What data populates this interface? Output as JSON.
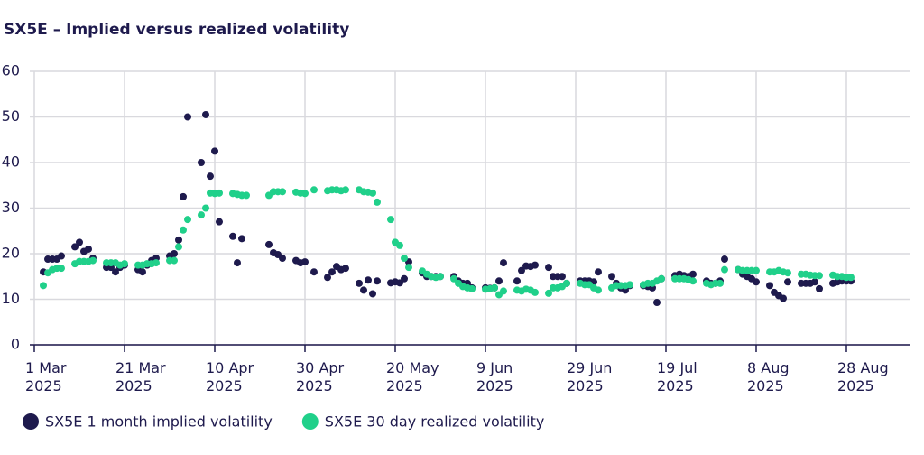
{
  "chart_data": {
    "type": "scatter",
    "title": "SX5E – Implied versus realized volatility",
    "x": [
      "2025-03-03",
      "2025-03-04",
      "2025-03-05",
      "2025-03-06",
      "2025-03-07",
      "2025-03-10",
      "2025-03-11",
      "2025-03-12",
      "2025-03-13",
      "2025-03-14",
      "2025-03-17",
      "2025-03-18",
      "2025-03-19",
      "2025-03-20",
      "2025-03-21",
      "2025-03-24",
      "2025-03-25",
      "2025-03-26",
      "2025-03-27",
      "2025-03-28",
      "2025-03-31",
      "2025-04-01",
      "2025-04-02",
      "2025-04-03",
      "2025-04-04",
      "2025-04-07",
      "2025-04-08",
      "2025-04-09",
      "2025-04-10",
      "2025-04-11",
      "2025-04-14",
      "2025-04-15",
      "2025-04-16",
      "2025-04-17",
      "2025-04-22",
      "2025-04-23",
      "2025-04-24",
      "2025-04-25",
      "2025-04-28",
      "2025-04-29",
      "2025-04-30",
      "2025-05-02",
      "2025-05-05",
      "2025-05-06",
      "2025-05-07",
      "2025-05-08",
      "2025-05-09",
      "2025-05-12",
      "2025-05-13",
      "2025-05-14",
      "2025-05-15",
      "2025-05-16",
      "2025-05-19",
      "2025-05-20",
      "2025-05-21",
      "2025-05-22",
      "2025-05-23",
      "2025-05-26",
      "2025-05-27",
      "2025-05-28",
      "2025-05-29",
      "2025-05-30",
      "2025-06-02",
      "2025-06-03",
      "2025-06-04",
      "2025-06-05",
      "2025-06-06",
      "2025-06-09",
      "2025-06-10",
      "2025-06-11",
      "2025-06-12",
      "2025-06-13",
      "2025-06-16",
      "2025-06-17",
      "2025-06-18",
      "2025-06-19",
      "2025-06-20",
      "2025-06-23",
      "2025-06-24",
      "2025-06-25",
      "2025-06-26",
      "2025-06-27",
      "2025-06-30",
      "2025-07-01",
      "2025-07-02",
      "2025-07-03",
      "2025-07-04",
      "2025-07-07",
      "2025-07-08",
      "2025-07-09",
      "2025-07-10",
      "2025-07-11",
      "2025-07-14",
      "2025-07-15",
      "2025-07-16",
      "2025-07-17",
      "2025-07-18",
      "2025-07-21",
      "2025-07-22",
      "2025-07-23",
      "2025-07-24",
      "2025-07-25",
      "2025-07-28",
      "2025-07-29",
      "2025-07-30",
      "2025-07-31",
      "2025-08-01",
      "2025-08-04",
      "2025-08-05",
      "2025-08-06",
      "2025-08-07",
      "2025-08-08",
      "2025-08-11",
      "2025-08-12",
      "2025-08-13",
      "2025-08-14",
      "2025-08-15",
      "2025-08-18",
      "2025-08-19",
      "2025-08-20",
      "2025-08-21",
      "2025-08-22",
      "2025-08-25",
      "2025-08-26",
      "2025-08-27",
      "2025-08-28",
      "2025-08-29"
    ],
    "series": [
      {
        "name": "SX5E 1 month implied volatility",
        "color": "#1e1a4d",
        "values": [
          16,
          18.8,
          18.8,
          18.8,
          19.5,
          21.5,
          22.5,
          20.5,
          21,
          19,
          17,
          17,
          16,
          17,
          17.5,
          16.5,
          16,
          17.5,
          18.5,
          19,
          19.5,
          20,
          23,
          32.5,
          50,
          40,
          50.5,
          37,
          42.5,
          27,
          23.8,
          18,
          23.3,
          null,
          22,
          20.2,
          19.8,
          19,
          18.5,
          18,
          18.2,
          16,
          14.8,
          16,
          17.2,
          16.5,
          16.8,
          13.5,
          12,
          14.2,
          11.2,
          14,
          13.6,
          13.8,
          13.6,
          14.5,
          18.2,
          15.8,
          15,
          15,
          15,
          15,
          15,
          14,
          13.5,
          13.5,
          12.5,
          12.5,
          12.4,
          12.5,
          14,
          18,
          14,
          16.3,
          17.3,
          17.2,
          17.5,
          17,
          15,
          15,
          15,
          13.5,
          14,
          14,
          14,
          13.8,
          16,
          15,
          13.5,
          12.5,
          12,
          13,
          13,
          12.8,
          12.5,
          9.3,
          14.5,
          15.2,
          15.5,
          15.2,
          15,
          15.5,
          14,
          13.5,
          13.5,
          14,
          18.8,
          16.5,
          15.5,
          15,
          14.5,
          13.8,
          13,
          11.5,
          10.8,
          10.2,
          13.8,
          13.5,
          13.5,
          13.5,
          13.8,
          12.3,
          13.5,
          13.8,
          14,
          14,
          14
        ]
      },
      {
        "name": "SX5E 30 day realized volatility",
        "color": "#20d08a",
        "values": [
          13,
          15.8,
          16.5,
          16.8,
          16.8,
          17.8,
          18.3,
          18.3,
          18.3,
          18.5,
          18,
          18,
          18,
          17.5,
          17.8,
          17.5,
          17.5,
          17.8,
          17.8,
          18,
          18.5,
          18.5,
          21.5,
          25.2,
          27.5,
          28.5,
          30,
          33.3,
          33.2,
          33.3,
          33.2,
          33,
          32.8,
          32.8,
          32.8,
          33.6,
          33.6,
          33.6,
          33.5,
          33.3,
          33.2,
          34,
          33.8,
          34,
          34,
          33.8,
          34,
          34,
          33.6,
          33.5,
          33.3,
          31.3,
          27.5,
          22.5,
          21.8,
          19,
          17,
          16.2,
          15.5,
          15,
          14.8,
          15,
          14.5,
          13.5,
          12.8,
          12.5,
          12.3,
          12.2,
          12.3,
          12.5,
          11,
          11.8,
          12,
          11.8,
          12.2,
          12,
          11.5,
          11.3,
          12.5,
          12.5,
          12.8,
          13.5,
          13.5,
          13.2,
          13.2,
          12.5,
          12,
          12.5,
          13,
          13,
          13,
          13.2,
          13.2,
          13.5,
          13.5,
          14,
          14.5,
          14.5,
          14.5,
          14.5,
          14.3,
          14,
          13.5,
          13.2,
          13.5,
          13.5,
          16.5,
          16.5,
          16.3,
          16.3,
          16.3,
          16.3,
          16,
          16,
          16.3,
          16,
          15.8,
          15.5,
          15.5,
          15.3,
          15.2,
          15.2,
          15.3,
          15,
          15,
          14.8,
          14.8
        ]
      }
    ],
    "xlim": [
      "2025-02-28",
      "2025-09-11"
    ],
    "xticks": [
      {
        "value": "2025-03-01",
        "label": [
          "1 Mar",
          "2025"
        ]
      },
      {
        "value": "2025-03-21",
        "label": [
          "21 Mar",
          "2025"
        ]
      },
      {
        "value": "2025-04-10",
        "label": [
          "10 Apr",
          "2025"
        ]
      },
      {
        "value": "2025-04-30",
        "label": [
          "30 Apr",
          "2025"
        ]
      },
      {
        "value": "2025-05-20",
        "label": [
          "20 May",
          "2025"
        ]
      },
      {
        "value": "2025-06-09",
        "label": [
          "9 Jun",
          "2025"
        ]
      },
      {
        "value": "2025-06-29",
        "label": [
          "29 Jun",
          "2025"
        ]
      },
      {
        "value": "2025-07-19",
        "label": [
          "19 Jul",
          "2025"
        ]
      },
      {
        "value": "2025-08-08",
        "label": [
          "8 Aug",
          "2025"
        ]
      },
      {
        "value": "2025-08-28",
        "label": [
          "28 Aug",
          "2025"
        ]
      }
    ],
    "ylim": [
      0,
      60
    ],
    "yticks": [
      0,
      10,
      20,
      30,
      40,
      50,
      60
    ],
    "grid": true,
    "legend": "bottom"
  }
}
